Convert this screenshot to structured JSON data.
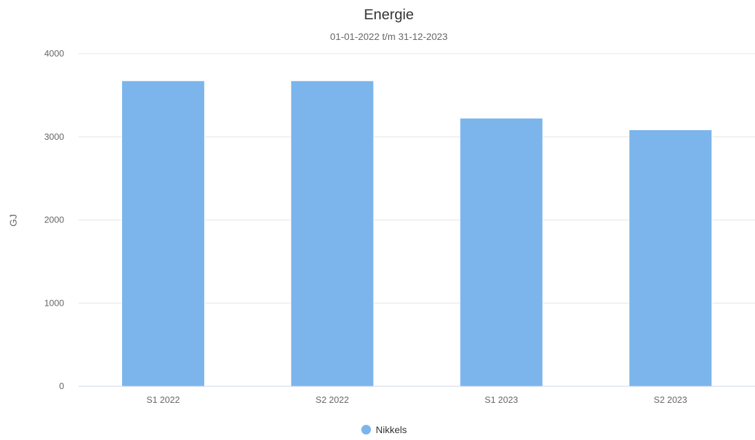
{
  "chart_data": {
    "type": "bar",
    "title": "Energie",
    "subtitle": "01-01-2022 t/m 31-12-2023",
    "xlabel": "",
    "ylabel": "GJ",
    "categories": [
      "S1 2022",
      "S2 2022",
      "S1 2023",
      "S2 2023"
    ],
    "series": [
      {
        "name": "Nikkels",
        "values": [
          3675,
          3675,
          3225,
          3085
        ],
        "color": "#7cb5ec"
      }
    ],
    "ylim": [
      0,
      4000
    ],
    "yticks": [
      0,
      1000,
      2000,
      3000,
      4000
    ],
    "grid": true,
    "legend_position": "bottom-center"
  }
}
